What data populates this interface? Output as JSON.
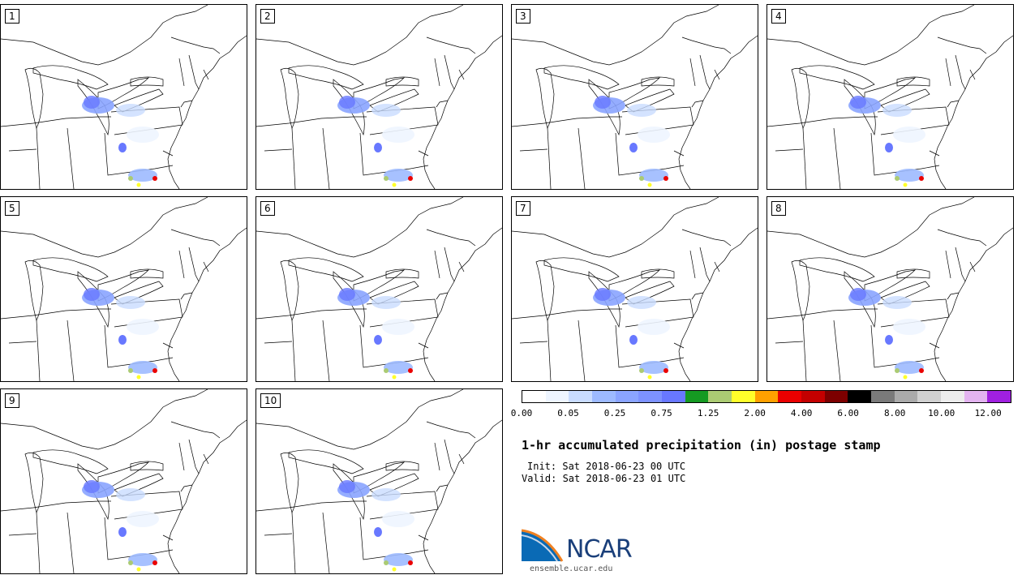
{
  "panels": [
    "1",
    "2",
    "3",
    "4",
    "5",
    "6",
    "7",
    "8",
    "9",
    "10"
  ],
  "colorbar": {
    "colors": [
      "#ffffff",
      "#eef5ff",
      "#c9dcff",
      "#9dbaff",
      "#8aa4ff",
      "#7d92ff",
      "#6878ff",
      "#159a22",
      "#abcb73",
      "#ffff2a",
      "#ffa000",
      "#ea0000",
      "#c40000",
      "#7d0000",
      "#000000",
      "#7a7a7a",
      "#aaaaaa",
      "#d0d0d0",
      "#ececec",
      "#e3b3f0",
      "#a020e0"
    ],
    "tick_labels": [
      "0.00",
      "0.05",
      "0.25",
      "0.75",
      "1.25",
      "2.00",
      "4.00",
      "6.00",
      "8.00",
      "10.00",
      "12.00"
    ]
  },
  "title": "1-hr accumulated precipitation (in) postage stamp",
  "init": "Init: Sat 2018-06-23 00 UTC",
  "valid": "Valid: Sat 2018-06-23 01 UTC",
  "logo": {
    "name": "NCAR",
    "url_text": "ensemble.ucar.edu"
  }
}
